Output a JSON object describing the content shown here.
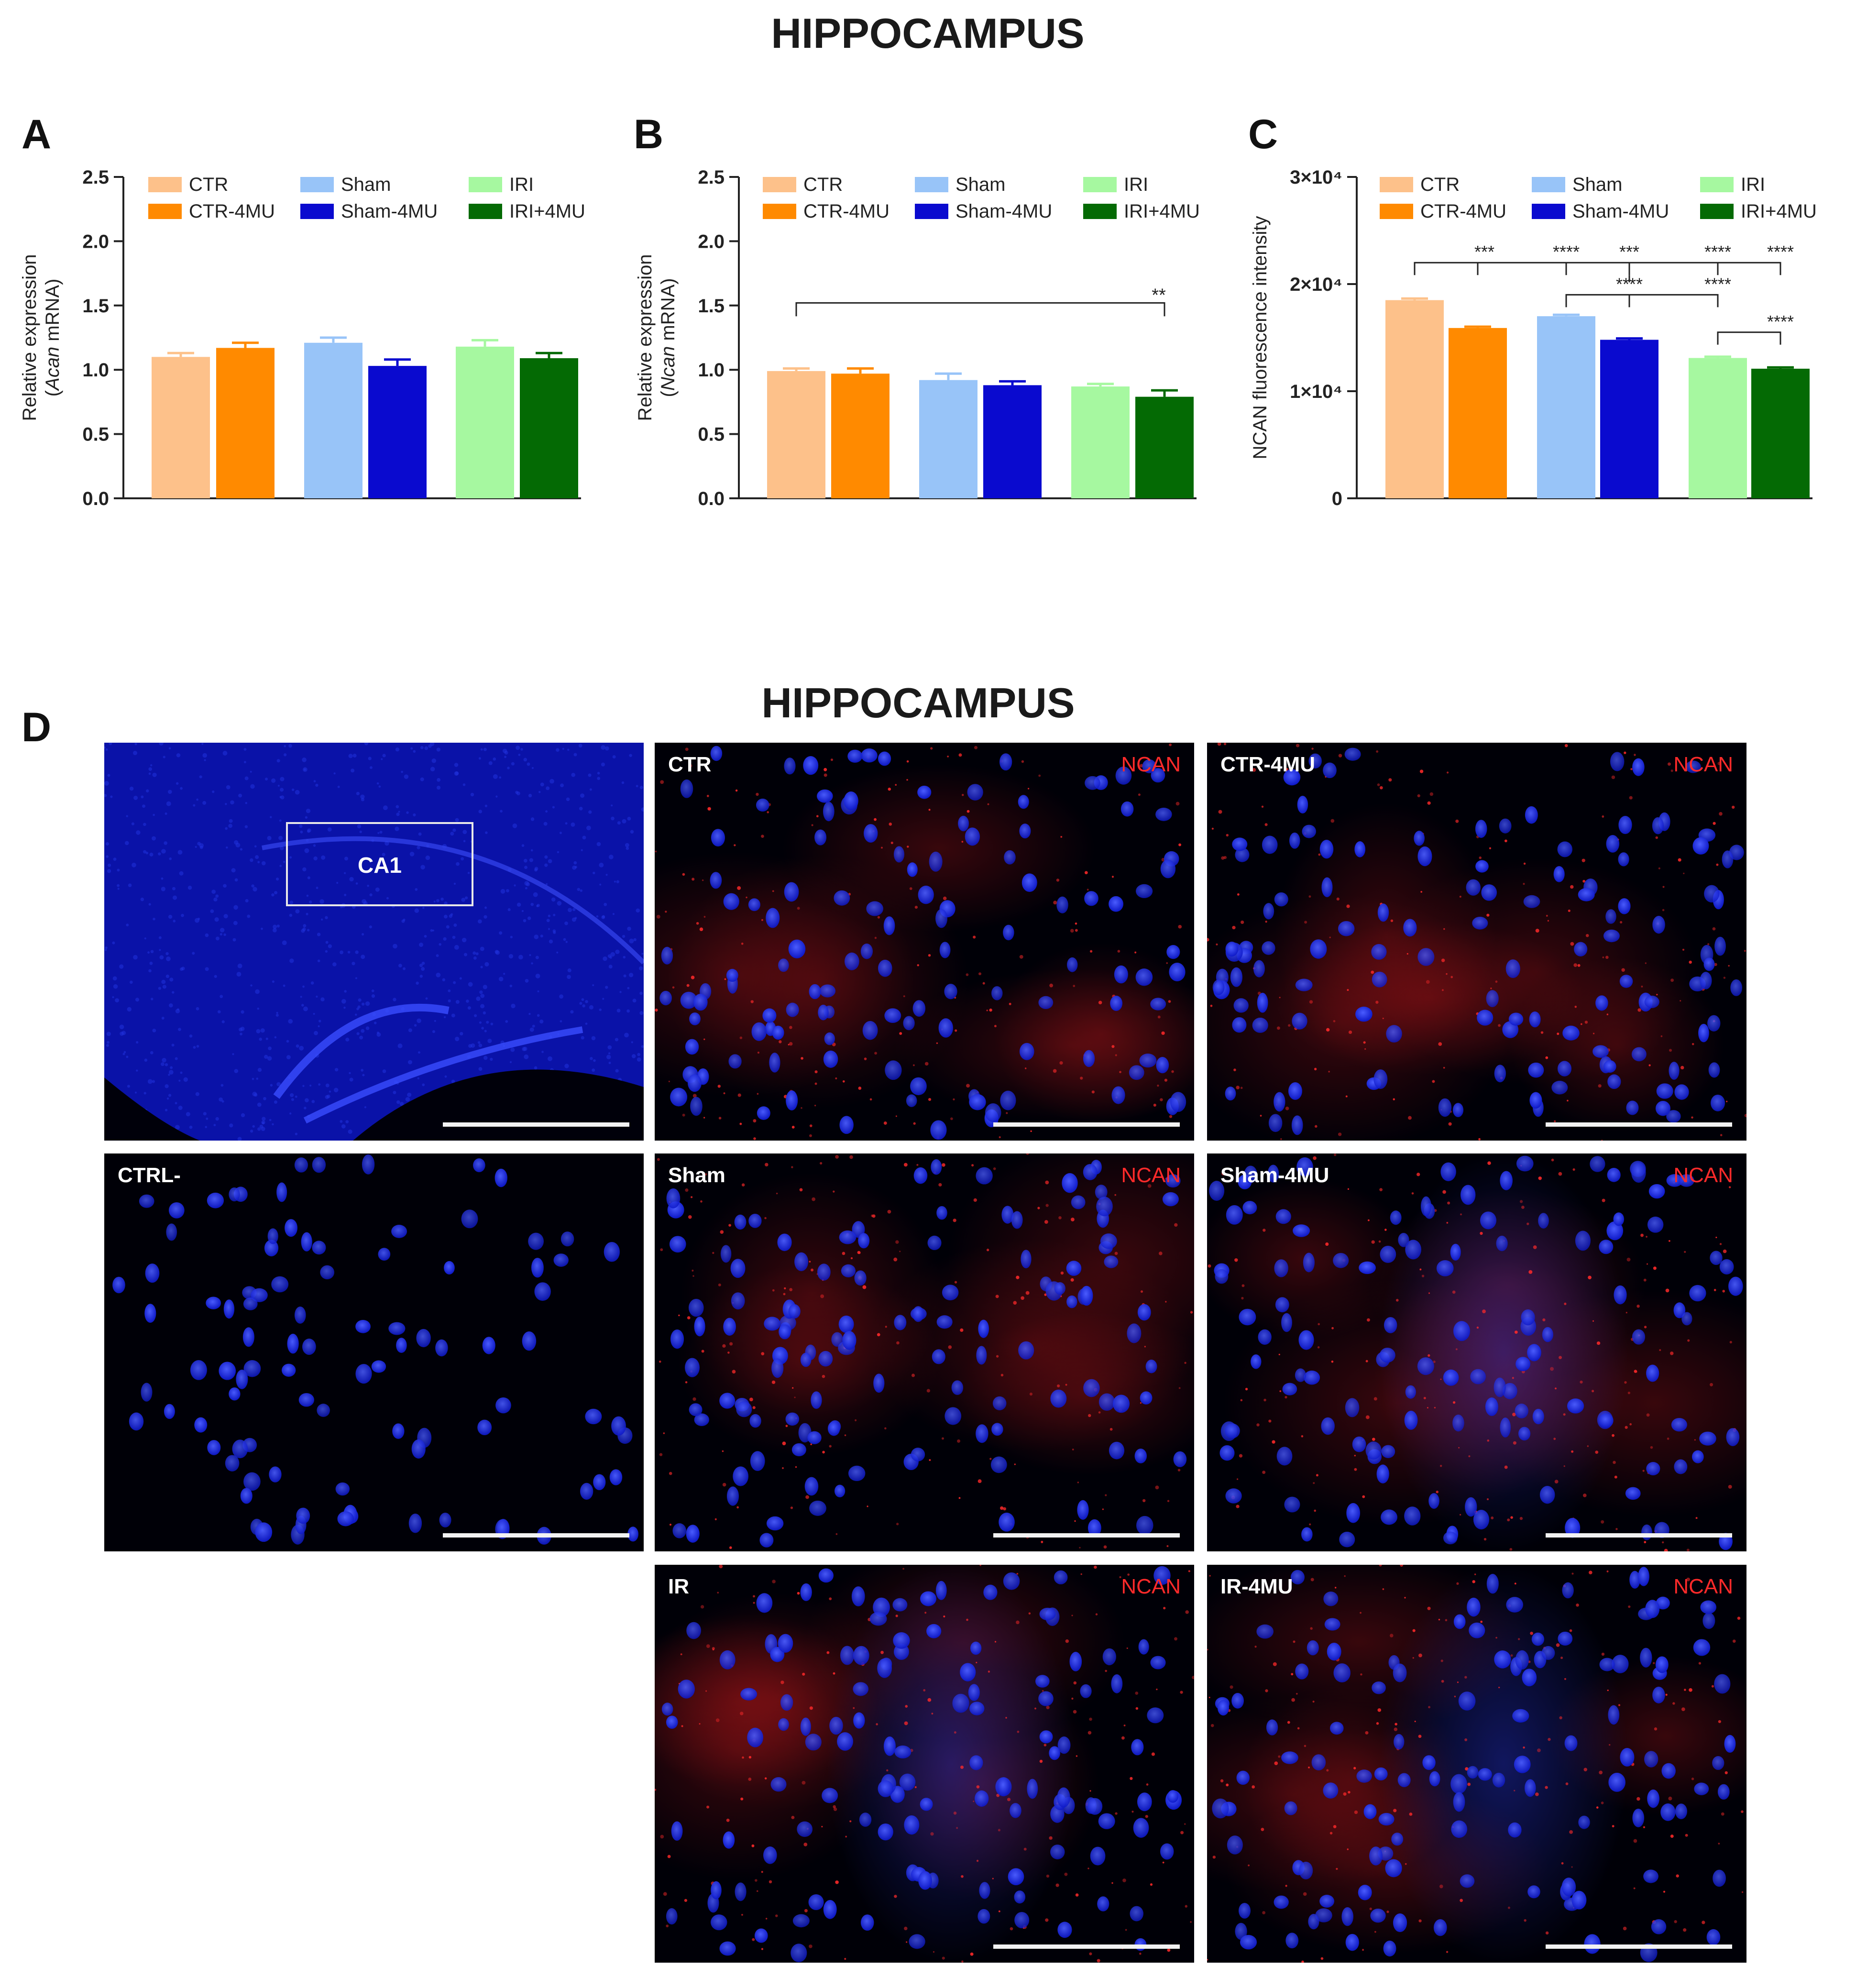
{
  "top_title": "HIPPOCAMPUS",
  "bottom_title": "HIPPOCAMPUS",
  "panel_labels": {
    "a": "A",
    "b": "B",
    "c": "C",
    "d": "D"
  },
  "colors": {
    "CTR": "#FDC18A",
    "CTR-4MU": "#FF8A00",
    "Sham": "#98C4F8",
    "Sham-4MU": "#0A0ACF",
    "IRI": "#A6F8A0",
    "IRI+4MU": "#046A04",
    "nuclei": "#1a2bff",
    "ncan": "#ff2020",
    "ncan_text": "#ff2a2a"
  },
  "chart_data": [
    {
      "id": "A",
      "type": "bar",
      "ylabel_line1": "Relative expression",
      "ylabel_italic": "Acan",
      "ylabel_rest": " mRNA",
      "ylim": [
        0,
        2.5
      ],
      "yticks": [
        "0.0",
        "0.5",
        "1.0",
        "1.5",
        "2.0",
        "2.5"
      ],
      "ytick_values": [
        0,
        0.5,
        1.0,
        1.5,
        2.0,
        2.5
      ],
      "legend": [
        "CTR",
        "CTR-4MU",
        "Sham",
        "Sham-4MU",
        "IRI",
        "IRI+4MU"
      ],
      "categories": [
        "CTR",
        "CTR-4MU",
        "Sham",
        "Sham-4MU",
        "IRI",
        "IRI+4MU"
      ],
      "values": [
        1.1,
        1.17,
        1.21,
        1.03,
        1.18,
        1.09
      ],
      "errors": [
        0.03,
        0.04,
        0.04,
        0.05,
        0.05,
        0.04
      ],
      "significance": []
    },
    {
      "id": "B",
      "type": "bar",
      "ylabel_line1": "Relative expression",
      "ylabel_italic": "Ncan",
      "ylabel_rest": " mRNA",
      "ylim": [
        0,
        2.5
      ],
      "yticks": [
        "0.0",
        "0.5",
        "1.0",
        "1.5",
        "2.0",
        "2.5"
      ],
      "ytick_values": [
        0,
        0.5,
        1.0,
        1.5,
        2.0,
        2.5
      ],
      "legend": [
        "CTR",
        "CTR-4MU",
        "Sham",
        "Sham-4MU",
        "IRI",
        "IRI+4MU"
      ],
      "categories": [
        "CTR",
        "CTR-4MU",
        "Sham",
        "Sham-4MU",
        "IRI",
        "IRI+4MU"
      ],
      "values": [
        0.99,
        0.97,
        0.92,
        0.88,
        0.87,
        0.79
      ],
      "errors": [
        0.02,
        0.04,
        0.05,
        0.03,
        0.02,
        0.05
      ],
      "significance": [
        {
          "from": 0,
          "to": 5,
          "label": "**",
          "level": 1.52
        }
      ]
    },
    {
      "id": "C",
      "type": "bar",
      "ylabel_line1": "NCAN fluorescence intensity",
      "ylabel_italic": "",
      "ylabel_rest": "",
      "ylim": [
        0,
        30000
      ],
      "yticks": [
        "0",
        "1×10⁴",
        "2×10⁴",
        "3×10⁴"
      ],
      "ytick_values": [
        0,
        10000,
        20000,
        30000
      ],
      "legend": [
        "CTR",
        "CTR-4MU",
        "Sham",
        "Sham-4MU",
        "IRI",
        "IRI+4MU"
      ],
      "categories": [
        "CTR",
        "CTR-4MU",
        "Sham",
        "Sham-4MU",
        "IRI",
        "IRI+4MU"
      ],
      "values": [
        18500,
        15900,
        17000,
        14800,
        13100,
        12100
      ],
      "errors": [
        150,
        120,
        130,
        130,
        120,
        120
      ],
      "significance": [
        {
          "from": 0,
          "to": 1,
          "label": "***",
          "level": 22000
        },
        {
          "from": 0,
          "to": 2,
          "label": "****",
          "level": 22000
        },
        {
          "from": 0,
          "to": 3,
          "label": "***",
          "level": 22000
        },
        {
          "from": 0,
          "to": 4,
          "label": "****",
          "level": 22000
        },
        {
          "from": 0,
          "to": 5,
          "label": "****",
          "level": 22000
        },
        {
          "from": 2,
          "to": 3,
          "label": "****",
          "level": 19000
        },
        {
          "from": 2,
          "to": 4,
          "label": "****",
          "level": 19000
        },
        {
          "from": 4,
          "to": 5,
          "label": "****",
          "level": 15500
        }
      ]
    }
  ],
  "micrographs": {
    "overview_label": "CA1",
    "ncan_label": "NCAN",
    "panels": [
      {
        "key": "overview",
        "label": "",
        "ncan": false
      },
      {
        "key": "ctr",
        "label": "CTR",
        "ncan": true
      },
      {
        "key": "ctr4mu",
        "label": "CTR-4MU",
        "ncan": true
      },
      {
        "key": "ctrlneg",
        "label": "CTRL-",
        "ncan": false
      },
      {
        "key": "sham",
        "label": "Sham",
        "ncan": true
      },
      {
        "key": "sham4mu",
        "label": "Sham-4MU",
        "ncan": true
      },
      {
        "key": "ir",
        "label": "IR",
        "ncan": true
      },
      {
        "key": "ir4mu",
        "label": "IR-4MU",
        "ncan": true
      }
    ]
  }
}
